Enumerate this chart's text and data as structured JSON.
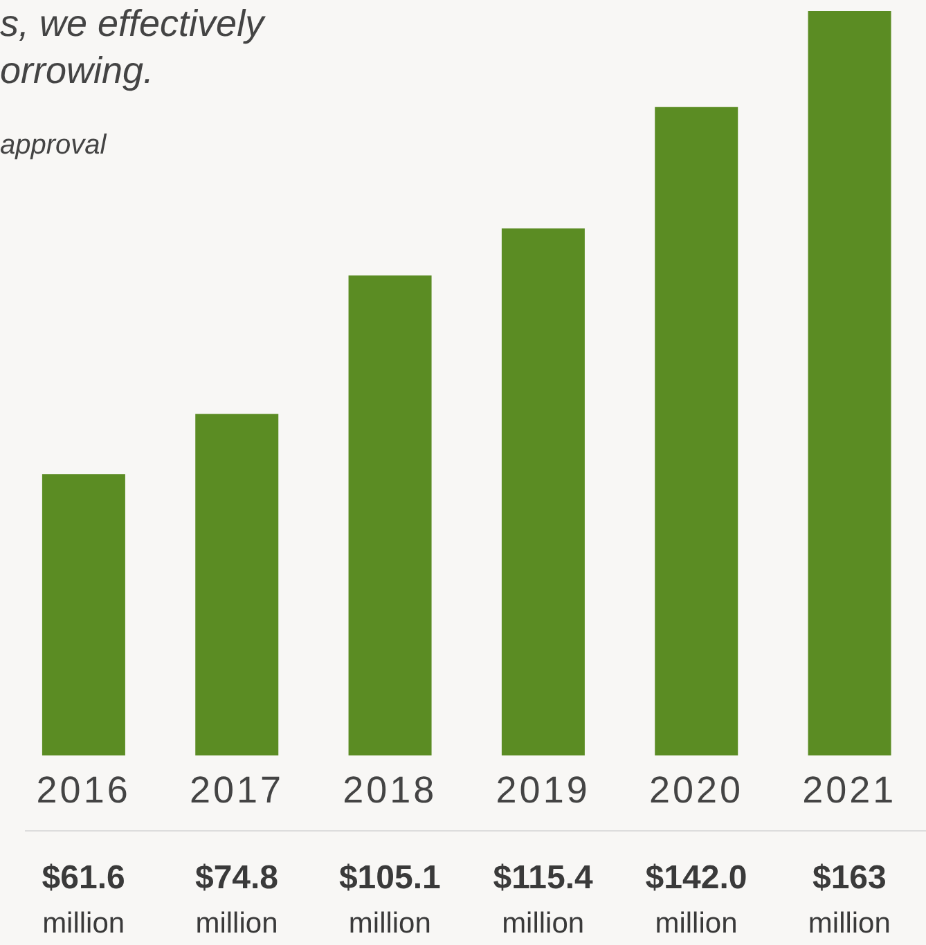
{
  "chart_data": {
    "type": "bar",
    "categories": [
      "2016",
      "2017",
      "2018",
      "2019",
      "2020",
      "2021"
    ],
    "values": [
      61.6,
      74.8,
      105.1,
      115.4,
      142.0,
      163
    ],
    "color": "#5b8c23",
    "value_labels": [
      "$61.6 million",
      "$74.8 million",
      "$105.1 million",
      "$115.4 million",
      "$142.0 million",
      "$163 million"
    ],
    "annotations": [
      "s, we effectively",
      "orrowing.",
      "approval"
    ],
    "grid": false
  }
}
